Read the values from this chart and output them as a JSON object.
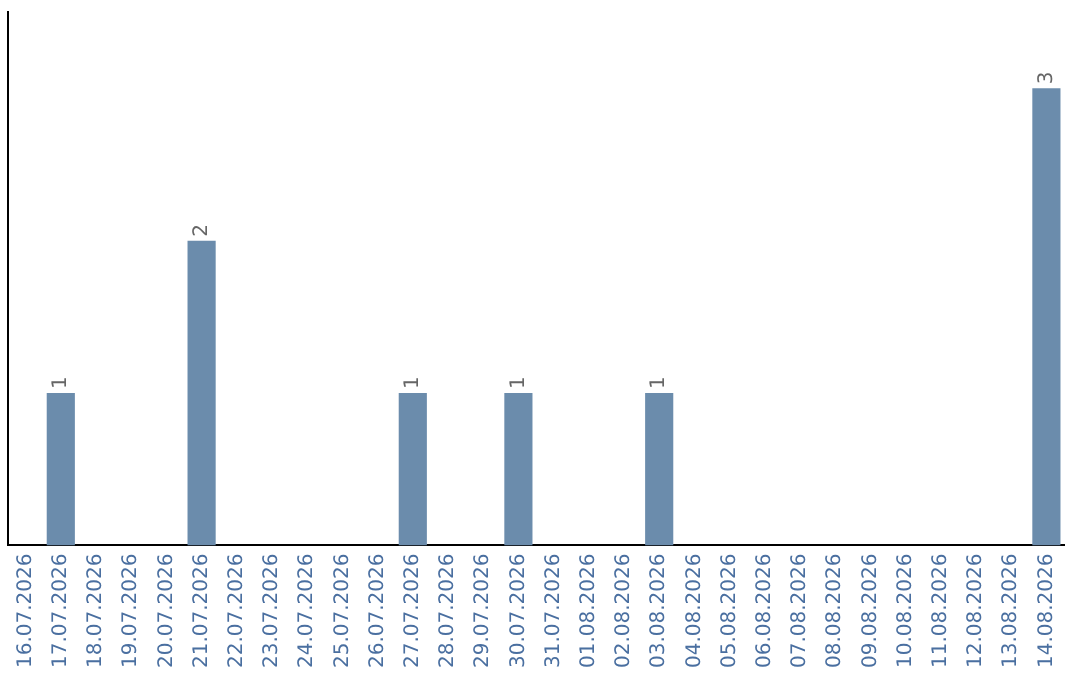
{
  "chart_data": {
    "type": "bar",
    "categories": [
      "16.07.2026",
      "17.07.2026",
      "18.07.2026",
      "19.07.2026",
      "20.07.2026",
      "21.07.2026",
      "22.07.2026",
      "23.07.2026",
      "24.07.2026",
      "25.07.2026",
      "26.07.2026",
      "27.07.2026",
      "28.07.2026",
      "29.07.2026",
      "30.07.2026",
      "31.07.2026",
      "01.08.2026",
      "02.08.2026",
      "03.08.2026",
      "04.08.2026",
      "05.08.2026",
      "06.08.2026",
      "07.08.2026",
      "08.08.2026",
      "09.08.2026",
      "10.08.2026",
      "11.08.2026",
      "12.08.2026",
      "13.08.2026",
      "14.08.2026"
    ],
    "values": [
      0,
      1,
      0,
      0,
      0,
      2,
      0,
      0,
      0,
      0,
      0,
      1,
      0,
      0,
      1,
      0,
      0,
      0,
      1,
      0,
      0,
      0,
      0,
      0,
      0,
      0,
      0,
      0,
      0,
      3
    ],
    "value_labels": [
      null,
      "1",
      null,
      null,
      null,
      "2",
      null,
      null,
      null,
      null,
      null,
      "1",
      null,
      null,
      "1",
      null,
      null,
      null,
      "1",
      null,
      null,
      null,
      null,
      null,
      null,
      null,
      null,
      null,
      null,
      "3"
    ],
    "color": "#6b8cac",
    "grid": false,
    "legend": false,
    "tick_labels": "x"
  }
}
